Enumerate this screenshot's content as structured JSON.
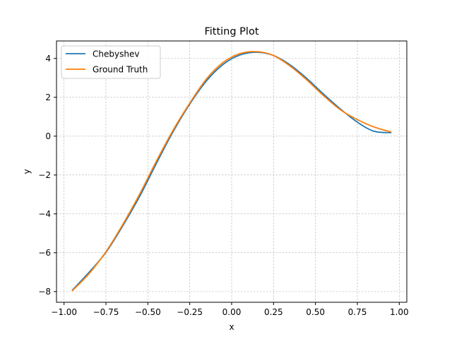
{
  "chart_data": {
    "type": "line",
    "title": "Fitting Plot",
    "xlabel": "x",
    "ylabel": "y",
    "xlim": [
      -1.045,
      1.045
    ],
    "ylim": [
      -8.55,
      4.9
    ],
    "grid": true,
    "legend_position": "top-left",
    "x_ticks": [
      -1.0,
      -0.75,
      -0.5,
      -0.25,
      0.0,
      0.25,
      0.5,
      0.75,
      1.0
    ],
    "x_tick_labels": [
      "−1.00",
      "−0.75",
      "−0.50",
      "−0.25",
      "0.00",
      "0.25",
      "0.50",
      "0.75",
      "1.00"
    ],
    "y_ticks": [
      -8,
      -6,
      -4,
      -2,
      0,
      2,
      4
    ],
    "y_tick_labels": [
      "−8",
      "−6",
      "−4",
      "−2",
      "0",
      "2",
      "4"
    ],
    "series": [
      {
        "name": "Chebyshev",
        "color": "#1f77b4",
        "x": [
          -0.95,
          -0.85,
          -0.75,
          -0.65,
          -0.55,
          -0.45,
          -0.35,
          -0.25,
          -0.15,
          -0.05,
          0.05,
          0.15,
          0.25,
          0.35,
          0.45,
          0.55,
          0.65,
          0.75,
          0.85,
          0.95
        ],
        "y": [
          -7.92,
          -7.0,
          -5.98,
          -4.62,
          -3.12,
          -1.42,
          0.22,
          1.65,
          2.85,
          3.7,
          4.18,
          4.32,
          4.15,
          3.66,
          2.96,
          2.15,
          1.39,
          0.72,
          0.25,
          0.18
        ]
      },
      {
        "name": "Ground Truth",
        "color": "#ff7f0e",
        "x": [
          -0.95,
          -0.85,
          -0.75,
          -0.65,
          -0.55,
          -0.45,
          -0.35,
          -0.25,
          -0.15,
          -0.05,
          0.05,
          0.15,
          0.25,
          0.35,
          0.45,
          0.55,
          0.65,
          0.75,
          0.85,
          0.95
        ],
        "y": [
          -7.95,
          -7.07,
          -5.95,
          -4.55,
          -3.0,
          -1.3,
          0.3,
          1.7,
          2.95,
          3.8,
          4.25,
          4.35,
          4.15,
          3.6,
          2.88,
          2.07,
          1.35,
          0.85,
          0.47,
          0.22
        ]
      }
    ]
  }
}
